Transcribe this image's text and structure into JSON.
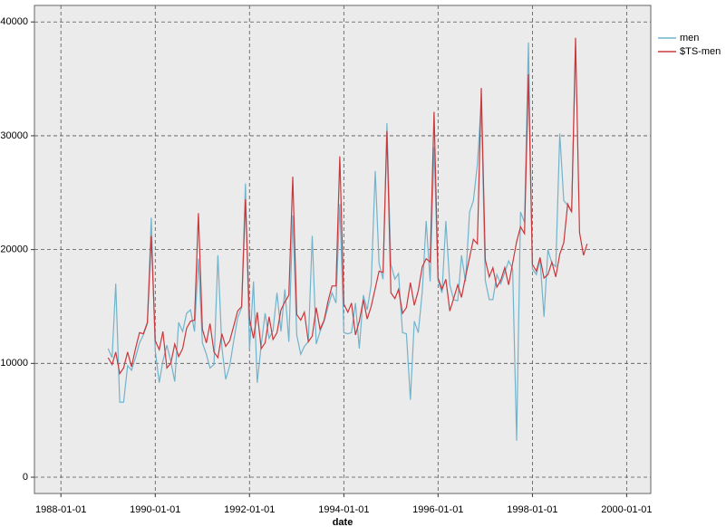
{
  "chart_data": {
    "type": "line",
    "xlabel": "date",
    "x": [
      "1989-01-01",
      "1989-02-01",
      "1989-03-01",
      "1989-04-01",
      "1989-05-01",
      "1989-06-01",
      "1989-07-01",
      "1989-08-01",
      "1989-09-01",
      "1989-10-01",
      "1989-11-01",
      "1989-12-01",
      "1990-01-01",
      "1990-02-01",
      "1990-03-01",
      "1990-04-01",
      "1990-05-01",
      "1990-06-01",
      "1990-07-01",
      "1990-08-01",
      "1990-09-01",
      "1990-10-01",
      "1990-11-01",
      "1990-12-01",
      "1991-01-01",
      "1991-02-01",
      "1991-03-01",
      "1991-04-01",
      "1991-05-01",
      "1991-06-01",
      "1991-07-01",
      "1991-08-01",
      "1991-09-01",
      "1991-10-01",
      "1991-11-01",
      "1991-12-01",
      "1992-01-01",
      "1992-02-01",
      "1992-03-01",
      "1992-04-01",
      "1992-05-01",
      "1992-06-01",
      "1992-07-01",
      "1992-08-01",
      "1992-09-01",
      "1992-10-01",
      "1992-11-01",
      "1992-12-01",
      "1993-01-01",
      "1993-02-01",
      "1993-03-01",
      "1993-04-01",
      "1993-05-01",
      "1993-06-01",
      "1993-07-01",
      "1993-08-01",
      "1993-09-01",
      "1993-10-01",
      "1993-11-01",
      "1993-12-01",
      "1994-01-01",
      "1994-02-01",
      "1994-03-01",
      "1994-04-01",
      "1994-05-01",
      "1994-06-01",
      "1994-07-01",
      "1994-08-01",
      "1994-09-01",
      "1994-10-01",
      "1994-11-01",
      "1994-12-01",
      "1995-01-01",
      "1995-02-01",
      "1995-03-01",
      "1995-04-01",
      "1995-05-01",
      "1995-06-01",
      "1995-07-01",
      "1995-08-01",
      "1995-09-01",
      "1995-10-01",
      "1995-11-01",
      "1995-12-01",
      "1996-01-01",
      "1996-02-01",
      "1996-03-01",
      "1996-04-01",
      "1996-05-01",
      "1996-06-01",
      "1996-07-01",
      "1996-08-01",
      "1996-09-01",
      "1996-10-01",
      "1996-11-01",
      "1996-12-01",
      "1997-01-01",
      "1997-02-01",
      "1997-03-01",
      "1997-04-01",
      "1997-05-01",
      "1997-06-01",
      "1997-07-01",
      "1997-08-01",
      "1997-09-01",
      "1997-10-01",
      "1997-11-01",
      "1997-12-01",
      "1998-01-01",
      "1998-02-01",
      "1998-03-01",
      "1998-04-01",
      "1998-05-01",
      "1998-06-01",
      "1998-07-01",
      "1998-08-01",
      "1998-09-01",
      "1998-10-01",
      "1998-11-01",
      "1998-12-01",
      "1999-01-01",
      "1999-02-01",
      "1999-03-01"
    ],
    "series": [
      {
        "name": "men",
        "color": "#72b3cc",
        "values": [
          11300,
          10500,
          17000,
          6600,
          6600,
          9800,
          9400,
          10500,
          11800,
          12500,
          13500,
          22800,
          11100,
          8300,
          10200,
          11600,
          10200,
          8400,
          13600,
          12800,
          14400,
          14700,
          12800,
          19200,
          11800,
          10800,
          9600,
          9900,
          19500,
          11400,
          8600,
          9800,
          12000,
          14000,
          14900,
          25800,
          11200,
          17200,
          8300,
          11600,
          14400,
          12200,
          12900,
          16200,
          12800,
          16500,
          11900,
          23000,
          12500,
          10800,
          11500,
          11900,
          21200,
          11700,
          12800,
          13700,
          15000,
          16200,
          15300,
          24000,
          12700,
          12600,
          12700,
          15300,
          11300,
          16000,
          14700,
          16900,
          26900,
          18800,
          17400,
          31100,
          18700,
          17400,
          17900,
          12700,
          12600,
          6800,
          13700,
          12700,
          16300,
          22500,
          17200,
          29000,
          17300,
          16200,
          22500,
          16900,
          15600,
          15500,
          19500,
          17200,
          23300,
          24300,
          27500,
          33000,
          17300,
          15600,
          15600,
          17800,
          17000,
          18000,
          19000,
          18300,
          3200,
          23300,
          22400,
          38200,
          18300,
          17800,
          19200,
          14100,
          20000,
          18800,
          18500,
          30200,
          24300,
          23900,
          23300,
          37800,
          null,
          null,
          null
        ]
      },
      {
        "name": "$TS-men",
        "color": "#c8383c",
        "values": [
          10500,
          9900,
          11000,
          9100,
          9600,
          11000,
          9700,
          11300,
          12700,
          12600,
          13600,
          21200,
          12000,
          11200,
          12800,
          9600,
          10000,
          11700,
          10600,
          11300,
          13100,
          13700,
          13800,
          23200,
          13000,
          11800,
          13500,
          11000,
          10500,
          12600,
          11500,
          12000,
          13300,
          14600,
          15000,
          24400,
          13900,
          12200,
          14500,
          11300,
          11800,
          14100,
          12100,
          12700,
          14700,
          15400,
          16000,
          26400,
          14300,
          13800,
          14500,
          11900,
          12400,
          14900,
          13000,
          13800,
          15500,
          16800,
          16800,
          28200,
          15200,
          14500,
          15300,
          12500,
          13700,
          15600,
          13900,
          15000,
          16600,
          18100,
          18000,
          30400,
          16200,
          15700,
          16500,
          14400,
          14900,
          17100,
          15100,
          16400,
          18500,
          19200,
          18900,
          32100,
          17500,
          16500,
          17400,
          14600,
          15700,
          16900,
          15800,
          17600,
          19300,
          20900,
          20500,
          34200,
          19100,
          17600,
          18400,
          16700,
          17300,
          18400,
          16900,
          18800,
          20700,
          22000,
          21400,
          35400,
          18700,
          18100,
          19300,
          17500,
          17800,
          18900,
          17600,
          19600,
          20600,
          24000,
          23300,
          38600,
          21500,
          19500,
          20500
        ]
      }
    ],
    "xlim": [
      "1987-06-10",
      "2000-07-06"
    ],
    "xticks": [
      "1988-01-01",
      "1990-01-01",
      "1992-01-01",
      "1994-01-01",
      "1996-01-01",
      "1998-01-01",
      "2000-01-01"
    ],
    "ylim": [
      -1430,
      41450
    ],
    "yticks": [
      0,
      10000,
      20000,
      30000,
      40000
    ],
    "grid": true
  }
}
